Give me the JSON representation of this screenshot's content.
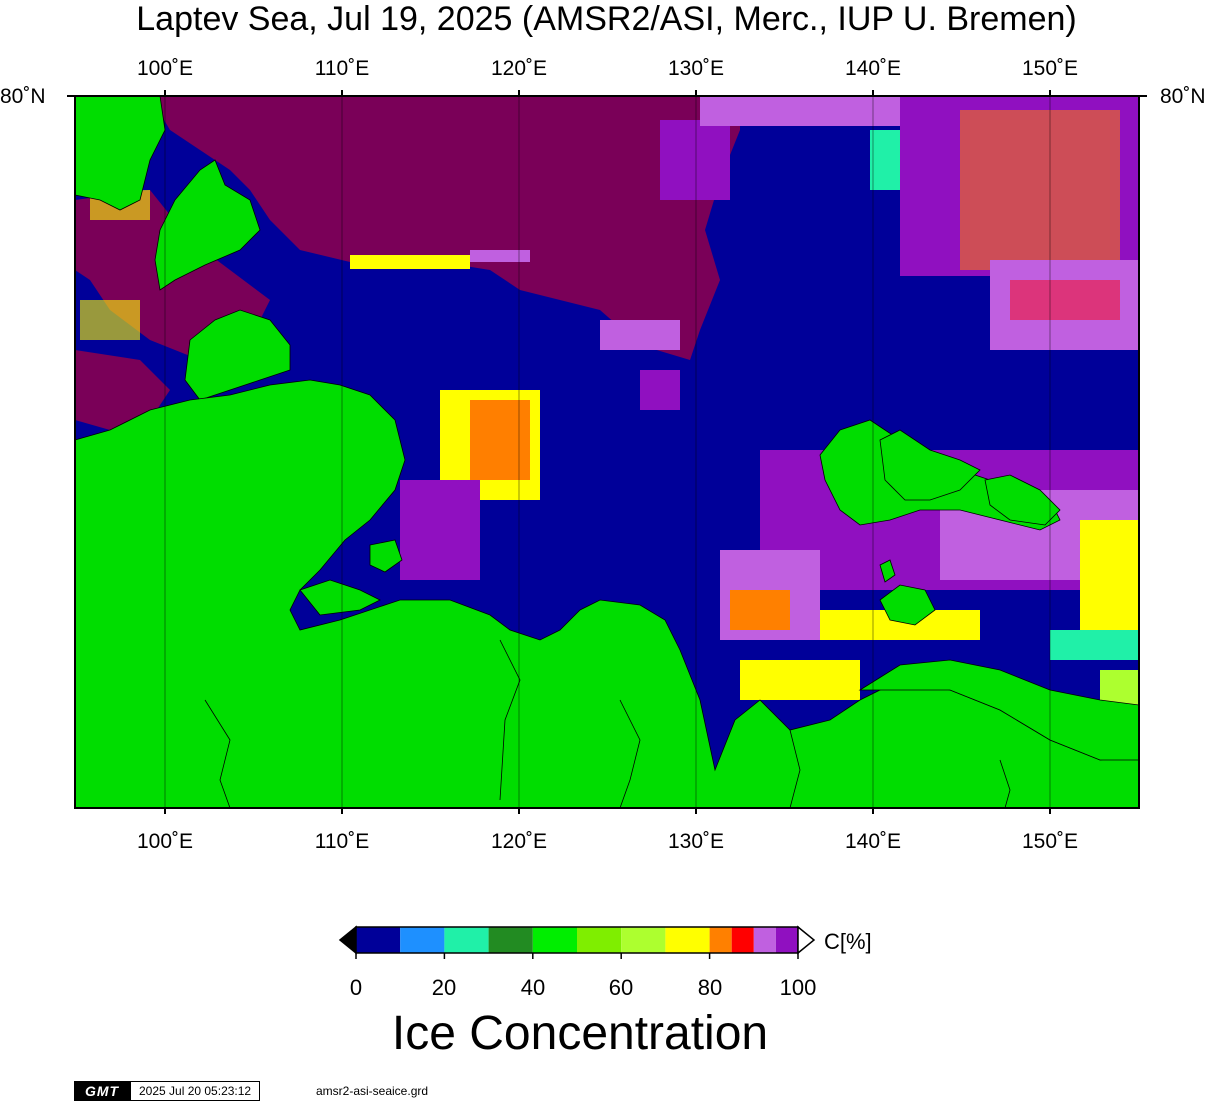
{
  "title": "Laptev Sea, Jul 19, 2025 (AMSR2/ASI, Merc., IUP U. Bremen)",
  "map": {
    "lon_range": [
      95,
      155
    ],
    "lon_ticks": [
      "100˚E",
      "110˚E",
      "120˚E",
      "130˚E",
      "140˚E",
      "150˚E"
    ],
    "lat_label": "80˚N",
    "colors": {
      "water": "#000099",
      "land": "#00dd00",
      "multi_year_ice": "#7a0058"
    }
  },
  "colorbar": {
    "ticks": [
      "0",
      "20",
      "40",
      "60",
      "80",
      "100"
    ],
    "unit": "C[%]",
    "colors": [
      "#000099",
      "#1e90ff",
      "#20f0a8",
      "#228b22",
      "#00ee00",
      "#7fee00",
      "#adff2f",
      "#ffff00",
      "#ff8000",
      "#ff0000",
      "#c060e0",
      "#9010c0"
    ]
  },
  "variable_title": "Ice Concentration",
  "footer": {
    "logo": "GMT",
    "timestamp": "2025 Jul 20 05:23:12",
    "grid_file": "amsr2-asi-seaice.grd"
  }
}
